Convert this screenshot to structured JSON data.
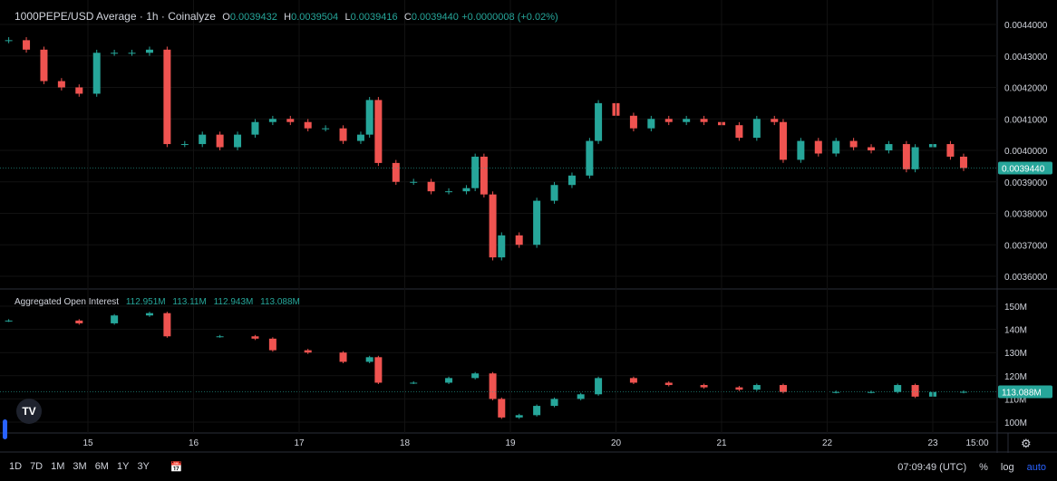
{
  "header": {
    "symbol": "1000PEPE/USD Average · 1h · Coinalyze",
    "o_label": "O",
    "o": "0.0039432",
    "h_label": "H",
    "h": "0.0039504",
    "l_label": "L",
    "l": "0.0039416",
    "c_label": "C",
    "c": "0.0039440",
    "change": "+0.0000008 (+0.02%)"
  },
  "oi_legend": {
    "title": "Aggregated Open Interest",
    "values": [
      "112.951M",
      "113.11M",
      "112.943M",
      "113.088M"
    ]
  },
  "bottom": {
    "ranges": [
      "1D",
      "7D",
      "1M",
      "3M",
      "6M",
      "1Y",
      "3Y"
    ],
    "time": "07:09:49 (UTC)",
    "percent": "%",
    "log": "log",
    "auto": "auto"
  },
  "colors": {
    "up": "#26a69a",
    "down": "#ef5350",
    "accent": "#2962ff",
    "background": "#000000"
  },
  "icons": {
    "logo": "tradingview-logo-icon",
    "calendar": "calendar-icon",
    "settings": "gear-icon"
  },
  "chart_data": [
    {
      "type": "candlestick",
      "pane": "price",
      "title": "1000PEPE/USD Average · 1h · Coinalyze",
      "ylim": [
        0.00355,
        0.00445
      ],
      "y_ticks": [
        "0.0044000",
        "0.0043000",
        "0.0042000",
        "0.0041000",
        "0.0040000",
        "0.0039000",
        "0.0038000",
        "0.0037000",
        "0.0036000"
      ],
      "last_price_label": "0.0039440",
      "x_ticks": [
        "15",
        "16",
        "17",
        "18",
        "19",
        "20",
        "21",
        "22",
        "23",
        "15:00"
      ],
      "closes": [
        [
          "14 06:00",
          0.00435
        ],
        [
          "14 10:00",
          0.00432
        ],
        [
          "14 14:00",
          0.00422
        ],
        [
          "14 18:00",
          0.0042
        ],
        [
          "14 22:00",
          0.00418
        ],
        [
          "15 02:00",
          0.00431
        ],
        [
          "15 06:00",
          0.00431
        ],
        [
          "15 10:00",
          0.00431
        ],
        [
          "15 14:00",
          0.00432
        ],
        [
          "15 18:00",
          0.00402
        ],
        [
          "15 22:00",
          0.00402
        ],
        [
          "16 02:00",
          0.00405
        ],
        [
          "16 06:00",
          0.00401
        ],
        [
          "16 10:00",
          0.00405
        ],
        [
          "16 14:00",
          0.00409
        ],
        [
          "16 18:00",
          0.0041
        ],
        [
          "16 22:00",
          0.00409
        ],
        [
          "17 02:00",
          0.00407
        ],
        [
          "17 06:00",
          0.00407
        ],
        [
          "17 10:00",
          0.00403
        ],
        [
          "17 14:00",
          0.00405
        ],
        [
          "17 16:00",
          0.00416
        ],
        [
          "17 18:00",
          0.00396
        ],
        [
          "17 22:00",
          0.0039
        ],
        [
          "18 02:00",
          0.0039
        ],
        [
          "18 06:00",
          0.00387
        ],
        [
          "18 10:00",
          0.00387
        ],
        [
          "18 14:00",
          0.00388
        ],
        [
          "18 16:00",
          0.00398
        ],
        [
          "18 18:00",
          0.00386
        ],
        [
          "18 20:00",
          0.00366
        ],
        [
          "18 22:00",
          0.00373
        ],
        [
          "19 02:00",
          0.0037
        ],
        [
          "19 06:00",
          0.00384
        ],
        [
          "19 10:00",
          0.00389
        ],
        [
          "19 14:00",
          0.00392
        ],
        [
          "19 18:00",
          0.00403
        ],
        [
          "19 20:00",
          0.00415
        ],
        [
          "20 00:00",
          0.00411
        ],
        [
          "20 04:00",
          0.00407
        ],
        [
          "20 08:00",
          0.0041
        ],
        [
          "20 12:00",
          0.00409
        ],
        [
          "20 16:00",
          0.0041
        ],
        [
          "20 20:00",
          0.00409
        ],
        [
          "21 00:00",
          0.00408
        ],
        [
          "21 04:00",
          0.00404
        ],
        [
          "21 08:00",
          0.0041
        ],
        [
          "21 12:00",
          0.00409
        ],
        [
          "21 14:00",
          0.00397
        ],
        [
          "21 18:00",
          0.00403
        ],
        [
          "21 22:00",
          0.00399
        ],
        [
          "22 02:00",
          0.00403
        ],
        [
          "22 06:00",
          0.00401
        ],
        [
          "22 10:00",
          0.004
        ],
        [
          "22 14:00",
          0.00402
        ],
        [
          "22 18:00",
          0.00394
        ],
        [
          "22 20:00",
          0.00401
        ],
        [
          "23 00:00",
          0.00402
        ],
        [
          "23 04:00",
          0.00398
        ],
        [
          "23 07:00",
          0.003944
        ]
      ]
    },
    {
      "type": "candlestick",
      "pane": "open_interest",
      "title": "Aggregated Open Interest",
      "ylim": [
        95,
        155
      ],
      "y_ticks": [
        "150M",
        "140M",
        "130M",
        "120M",
        "110M",
        "100M"
      ],
      "last_value_label": "113.088M",
      "closes": [
        [
          "14 06:00",
          143.8
        ],
        [
          "14 22:00",
          142.6
        ],
        [
          "15 06:00",
          146
        ],
        [
          "15 14:00",
          147
        ],
        [
          "15 18:00",
          137
        ],
        [
          "16 06:00",
          137
        ],
        [
          "16 14:00",
          136
        ],
        [
          "16 18:00",
          131
        ],
        [
          "17 02:00",
          130
        ],
        [
          "17 10:00",
          126
        ],
        [
          "17 16:00",
          128
        ],
        [
          "17 18:00",
          117
        ],
        [
          "18 02:00",
          117
        ],
        [
          "18 10:00",
          119
        ],
        [
          "18 16:00",
          121
        ],
        [
          "18 20:00",
          110
        ],
        [
          "18 22:00",
          102
        ],
        [
          "19 02:00",
          103
        ],
        [
          "19 06:00",
          107
        ],
        [
          "19 10:00",
          110
        ],
        [
          "19 16:00",
          112
        ],
        [
          "19 20:00",
          119
        ],
        [
          "20 04:00",
          117
        ],
        [
          "20 12:00",
          116
        ],
        [
          "20 20:00",
          115
        ],
        [
          "21 04:00",
          114
        ],
        [
          "21 08:00",
          116
        ],
        [
          "21 14:00",
          113
        ],
        [
          "22 02:00",
          113
        ],
        [
          "22 10:00",
          113
        ],
        [
          "22 16:00",
          116
        ],
        [
          "22 20:00",
          111
        ],
        [
          "23 00:00",
          113
        ],
        [
          "23 07:00",
          113.088
        ]
      ]
    }
  ]
}
